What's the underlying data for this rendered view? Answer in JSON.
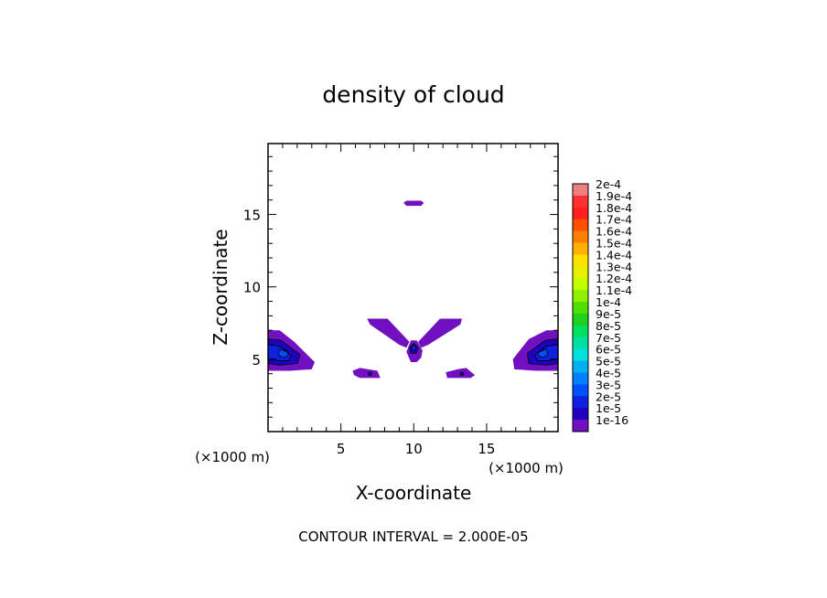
{
  "chart_data": {
    "type": "heatmap",
    "title": "density of cloud",
    "xlabel": "X-coordinate",
    "ylabel": "Z-coordinate",
    "x_unit_left": "(×1000 m)",
    "x_unit_right": "(×1000 m)",
    "xlim": [
      0,
      19.9
    ],
    "ylim": [
      0,
      19.9
    ],
    "x_ticks": [
      5,
      10,
      15
    ],
    "y_ticks": [
      5,
      10,
      15
    ],
    "footer": "CONTOUR INTERVAL = 2.000E-05",
    "colorbar": {
      "labels": [
        "2e-4",
        "1.9e-4",
        "1.8e-4",
        "1.7e-4",
        "1.6e-4",
        "1.5e-4",
        "1.4e-4",
        "1.3e-4",
        "1.2e-4",
        "1.1e-4",
        "1e-4",
        "9e-5",
        "8e-5",
        "7e-5",
        "6e-5",
        "5e-5",
        "4e-5",
        "3e-5",
        "2e-5",
        "1e-5",
        "1e-16"
      ],
      "colors": [
        "#f08080",
        "#ff3030",
        "#ff2020",
        "#ff5000",
        "#ff8000",
        "#ffb000",
        "#ffe000",
        "#e8f000",
        "#c0ff00",
        "#90f000",
        "#50e000",
        "#20d020",
        "#00e060",
        "#00e0a0",
        "#00e0e0",
        "#00b0f0",
        "#0080ff",
        "#0050ff",
        "#1020e0",
        "#2000c0",
        "#7010c0"
      ]
    },
    "regions": [
      {
        "name": "upper-speck",
        "points": [
          [
            9.5,
            15.6
          ],
          [
            10.5,
            15.6
          ],
          [
            10.7,
            15.8
          ],
          [
            10.5,
            15.95
          ],
          [
            9.5,
            15.95
          ],
          [
            9.3,
            15.8
          ]
        ],
        "level": 0
      },
      {
        "name": "left-arm",
        "points": [
          [
            6.8,
            7.8
          ],
          [
            8.2,
            7.8
          ],
          [
            9.7,
            6.2
          ],
          [
            9.5,
            5.8
          ],
          [
            9.0,
            6.0
          ],
          [
            7.0,
            7.4
          ]
        ],
        "level": 0
      },
      {
        "name": "right-arm",
        "points": [
          [
            11.8,
            7.8
          ],
          [
            13.3,
            7.8
          ],
          [
            13.2,
            7.4
          ],
          [
            11.0,
            6.0
          ],
          [
            10.5,
            5.8
          ],
          [
            10.3,
            6.2
          ]
        ],
        "level": 0
      },
      {
        "name": "center-blob-outer",
        "points": [
          [
            9.5,
            5.5
          ],
          [
            9.8,
            6.3
          ],
          [
            10.2,
            6.3
          ],
          [
            10.6,
            5.6
          ],
          [
            10.5,
            5.1
          ],
          [
            10.2,
            4.8
          ],
          [
            9.8,
            4.8
          ]
        ],
        "level": 0
      },
      {
        "name": "center-blob-mid",
        "points": [
          [
            9.7,
            5.8
          ],
          [
            10.0,
            6.1
          ],
          [
            10.3,
            5.8
          ],
          [
            10.2,
            5.4
          ],
          [
            9.8,
            5.4
          ]
        ],
        "level": 1
      },
      {
        "name": "center-blob-core",
        "points": [
          [
            9.85,
            5.85
          ],
          [
            10.0,
            6.0
          ],
          [
            10.15,
            5.85
          ],
          [
            10.1,
            5.6
          ],
          [
            9.9,
            5.6
          ]
        ],
        "level": 2
      },
      {
        "name": "left-small",
        "points": [
          [
            5.8,
            4.2
          ],
          [
            6.3,
            4.4
          ],
          [
            7.5,
            4.2
          ],
          [
            7.7,
            3.7
          ],
          [
            6.3,
            3.7
          ],
          [
            5.9,
            3.9
          ]
        ],
        "level": 0
      },
      {
        "name": "left-small-dot",
        "points": [
          [
            6.9,
            4.1
          ],
          [
            7.1,
            4.1
          ],
          [
            7.1,
            3.9
          ],
          [
            6.9,
            3.9
          ]
        ],
        "level": 1
      },
      {
        "name": "right-small",
        "points": [
          [
            12.3,
            3.7
          ],
          [
            12.2,
            4.1
          ],
          [
            13.0,
            4.3
          ],
          [
            13.6,
            4.4
          ],
          [
            14.2,
            3.9
          ],
          [
            13.9,
            3.7
          ]
        ],
        "level": 0
      },
      {
        "name": "right-small-dot",
        "points": [
          [
            13.2,
            4.1
          ],
          [
            13.4,
            4.1
          ],
          [
            13.4,
            3.9
          ],
          [
            13.2,
            3.9
          ]
        ],
        "level": 1
      },
      {
        "name": "left-edge-outer",
        "points": [
          [
            0,
            7.0
          ],
          [
            0.8,
            7.0
          ],
          [
            1.8,
            6.2
          ],
          [
            3.2,
            4.8
          ],
          [
            3.0,
            4.3
          ],
          [
            1.5,
            4.2
          ],
          [
            0,
            4.2
          ]
        ],
        "level": 0
      },
      {
        "name": "left-edge-mid",
        "points": [
          [
            0,
            6.4
          ],
          [
            0.9,
            6.3
          ],
          [
            2.2,
            5.3
          ],
          [
            2.0,
            4.7
          ],
          [
            0.8,
            4.6
          ],
          [
            0,
            4.7
          ]
        ],
        "level": 1
      },
      {
        "name": "left-edge-inner",
        "points": [
          [
            0,
            6.0
          ],
          [
            0.8,
            5.9
          ],
          [
            1.6,
            5.3
          ],
          [
            1.4,
            4.9
          ],
          [
            0.6,
            4.9
          ],
          [
            0,
            5.0
          ]
        ],
        "level": 2
      },
      {
        "name": "left-edge-core",
        "points": [
          [
            0.8,
            5.7
          ],
          [
            1.3,
            5.5
          ],
          [
            1.4,
            5.3
          ],
          [
            1.1,
            5.1
          ],
          [
            0.7,
            5.3
          ]
        ],
        "level": 3
      },
      {
        "name": "right-edge-outer",
        "points": [
          [
            19.9,
            7.0
          ],
          [
            19.1,
            7.0
          ],
          [
            17.9,
            6.4
          ],
          [
            16.8,
            5.0
          ],
          [
            16.9,
            4.3
          ],
          [
            18.4,
            4.2
          ],
          [
            19.9,
            4.2
          ]
        ],
        "level": 0
      },
      {
        "name": "right-edge-mid",
        "points": [
          [
            19.9,
            6.4
          ],
          [
            19.0,
            6.3
          ],
          [
            17.8,
            5.4
          ],
          [
            17.9,
            4.7
          ],
          [
            19.1,
            4.6
          ],
          [
            19.9,
            4.7
          ]
        ],
        "level": 1
      },
      {
        "name": "right-edge-inner",
        "points": [
          [
            19.9,
            6.0
          ],
          [
            19.1,
            5.9
          ],
          [
            18.3,
            5.3
          ],
          [
            18.5,
            4.9
          ],
          [
            19.3,
            4.9
          ],
          [
            19.9,
            5.0
          ]
        ],
        "level": 2
      },
      {
        "name": "right-edge-core",
        "points": [
          [
            19.1,
            5.7
          ],
          [
            18.6,
            5.5
          ],
          [
            18.5,
            5.3
          ],
          [
            18.8,
            5.1
          ],
          [
            19.2,
            5.3
          ]
        ],
        "level": 3
      }
    ],
    "level_colors": [
      "#7010c0",
      "#2000c0",
      "#1020e0",
      "#0050ff"
    ],
    "outline_levels": [
      1,
      2,
      3
    ]
  }
}
